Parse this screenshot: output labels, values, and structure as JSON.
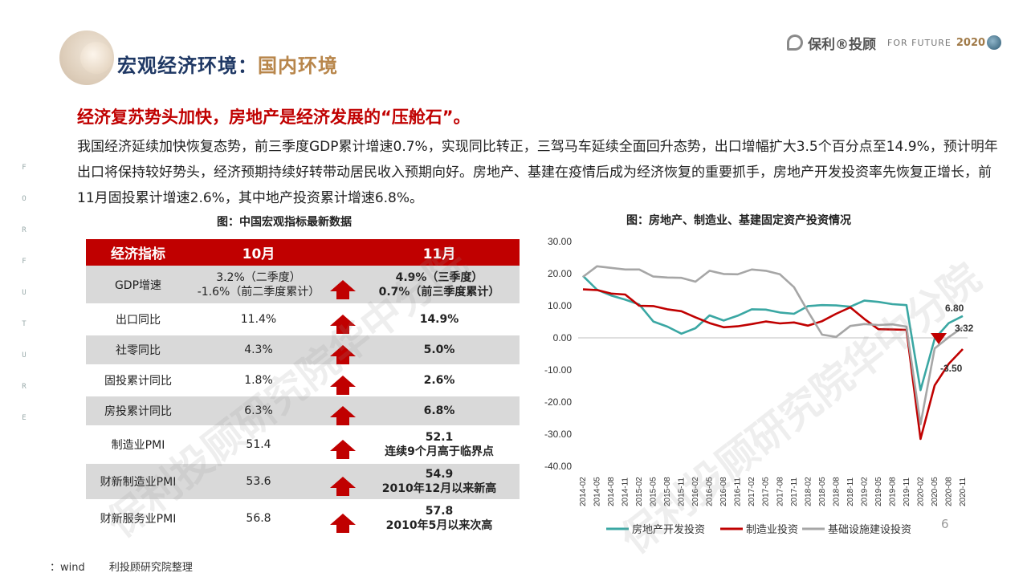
{
  "header": {
    "title_part1": "宏观经济环境：",
    "title_part2": "国内环境",
    "logo_text": "保利®投顾",
    "logo_tag": "FOR FUTURE",
    "logo_year": "2020"
  },
  "side_letters": [
    "F",
    "O",
    "R",
    "F",
    "U",
    "T",
    "U",
    "R",
    "E"
  ],
  "headline": "经济复苏势头加快，房地产是经济发展的“压舱石”。",
  "body": "我国经济延续加快恢复态势，前三季度GDP累计增速0.7%，实现同比转正，三驾马车延续全面回升态势，出口增幅扩大3.5个百分点至14.9%，预计明年出口将保持较好势头，经济预期持续好转带动居民收入预期向好。房地产、基建在疫情后成为经济恢复的重要抓手，房地产开发投资率先恢复正增长，前11月固投累计增速2.6%，其中地产投资累计增速6.8%。",
  "table_caption": "图：中国宏观指标最新数据",
  "chart_caption": "图：房地产、制造业、基建固定资产投资情况",
  "table": {
    "headers": [
      "经济指标",
      "10月",
      "11月"
    ],
    "rows": [
      {
        "name": "GDP增速",
        "oct": "3.2%（二季度）\n-1.6%（前二季度累计）",
        "nov": "4.9%（三季度）\n0.7%（前三季度累计）"
      },
      {
        "name": "出口同比",
        "oct": "11.4%",
        "nov": "14.9%"
      },
      {
        "name": "社零同比",
        "oct": "4.3%",
        "nov": "5.0%"
      },
      {
        "name": "固投累计同比",
        "oct": "1.8%",
        "nov": "2.6%"
      },
      {
        "name": "房投累计同比",
        "oct": "6.3%",
        "nov": "6.8%"
      },
      {
        "name": "制造业PMI",
        "oct": "51.4",
        "nov": "52.1\n连续9个月高于临界点"
      },
      {
        "name": "财新制造业PMI",
        "oct": "53.6",
        "nov": "54.9\n2010年12月以来新高"
      },
      {
        "name": "财新服务业PMI",
        "oct": "56.8",
        "nov": "57.8\n2010年5月以来次高"
      }
    ]
  },
  "chart_data": {
    "type": "line",
    "x": [
      "2014-02",
      "2014-05",
      "2014-08",
      "2014-11",
      "2015-02",
      "2015-05",
      "2015-08",
      "2015-11",
      "2016-02",
      "2016-05",
      "2016-08",
      "2016-11",
      "2017-02",
      "2017-05",
      "2017-08",
      "2017-11",
      "2018-02",
      "2018-05",
      "2018-08",
      "2018-11",
      "2019-02",
      "2019-05",
      "2019-08",
      "2019-11",
      "2020-02",
      "2020-05",
      "2020-08",
      "2020-11"
    ],
    "ylim": [
      -40,
      30
    ],
    "yticks": [
      "-40.00",
      "-30.00",
      "-20.00",
      "-10.00",
      "0.00",
      "10.00",
      "20.00",
      "30.00"
    ],
    "series": [
      {
        "name": "房地产开发投资",
        "color": "#3aa7a3",
        "values": [
          19.3,
          15,
          13.2,
          11.9,
          10.4,
          5.1,
          3.5,
          1.3,
          3.0,
          7.0,
          5.4,
          6.9,
          8.9,
          8.8,
          7.9,
          7.5,
          9.9,
          10.2,
          10.1,
          9.7,
          11.6,
          11.2,
          10.5,
          10.2,
          -16.3,
          -0.3,
          4.6,
          6.8
        ]
      },
      {
        "name": "制造业投资",
        "color": "#c00000",
        "values": [
          15.1,
          14.9,
          13.8,
          13.5,
          10.0,
          9.9,
          8.9,
          8.3,
          6.4,
          4.6,
          3.3,
          3.6,
          4.3,
          5.1,
          4.5,
          4.8,
          3.8,
          5.2,
          7.5,
          9.5,
          5.9,
          2.7,
          2.6,
          2.5,
          -31.5,
          -14.8,
          -8.1,
          -3.5
        ]
      },
      {
        "name": "基础设施建设投资",
        "color": "#a6a6a6",
        "values": [
          19.0,
          22.3,
          21.8,
          21.3,
          21.3,
          19.1,
          18.8,
          18.7,
          17.5,
          20.9,
          19.9,
          19.8,
          21.3,
          20.9,
          19.8,
          15.8,
          8.2,
          1.0,
          0.3,
          3.7,
          4.3,
          4.0,
          4.2,
          3.5,
          -26.9,
          -3.3,
          0.2,
          3.3
        ]
      }
    ],
    "annotations": [
      "6.80",
      "3.32",
      "-3.50"
    ]
  },
  "watermark": "保利投顾研究院华中分院",
  "page_number": "6",
  "source": "：wind　　 利投顾研究院整理"
}
